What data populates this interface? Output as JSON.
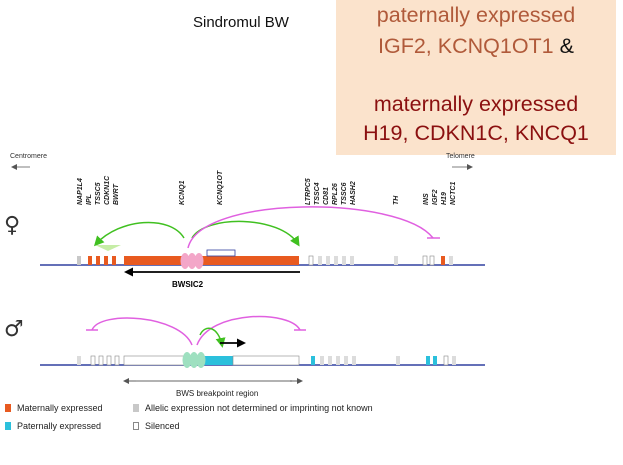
{
  "title": "Sindromul BW",
  "callout": {
    "line1": "paternally expressed",
    "line2": "IGF2, KCNQ1OT1",
    "line2_amp": "&",
    "line3": "maternally expressed",
    "line4": "H19, CDKN1C, KNCQ1"
  },
  "orientation": {
    "centromere": "Centromere",
    "telomere": "Telomere"
  },
  "genes": [
    "NAP1L4",
    "IPL",
    "TSSC5",
    "CDKN1C",
    "BWRT",
    "KCNQ1",
    "KCNQ1OT",
    "LTRPC5",
    "TSSC4",
    "CD81",
    "RPL26",
    "TSSC6",
    "HASH2",
    "TH",
    "INS",
    "IGF2",
    "H19",
    "NCTC1"
  ],
  "maternal": {
    "symbol": "♀",
    "transcript_label": "BWSIC2"
  },
  "paternal": {
    "symbol": "♂"
  },
  "breakpoint_label": "BWS breakpoint region",
  "legend": {
    "maternal": "Maternally expressed",
    "paternal": "Paternally expressed",
    "undetermined": "Allelic expression not determined or imprinting not known",
    "silenced": "Silenced"
  },
  "colors": {
    "maternal": "#e85a20",
    "paternal": "#2bc0dc",
    "undetermined": "#c8c8c8",
    "chromosome": "#3040a0",
    "arc_magenta": "#e060e0",
    "arc_green": "#40c020",
    "centre_pink": "#f3a6c8",
    "centre_mint": "#9ee0c0"
  }
}
